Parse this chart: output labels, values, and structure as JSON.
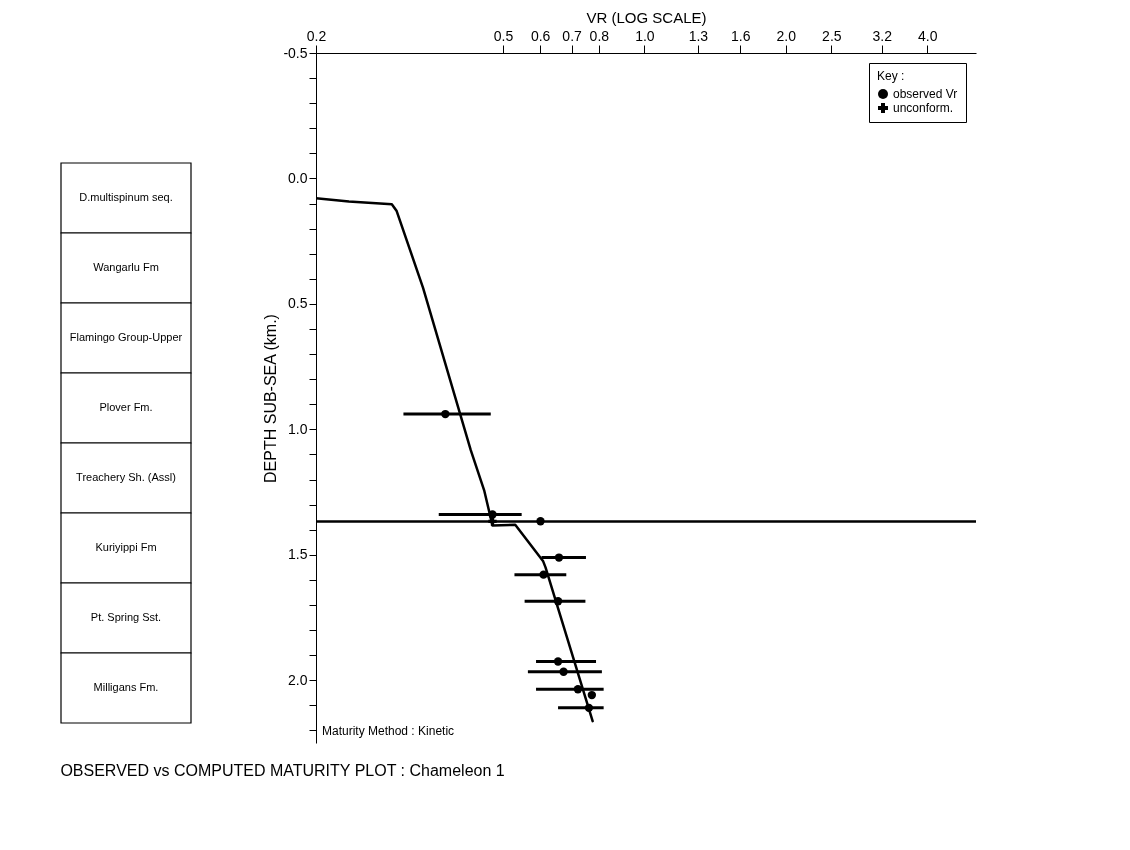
{
  "chart_data": [
    {
      "type": "scatter",
      "title": "OBSERVED vs COMPUTED MATURITY PLOT : Chameleon 1",
      "xlabel": "VR (LOG SCALE)",
      "ylabel": "DEPTH SUB-SEA (km.)",
      "legend_title": "Key :",
      "legend": "top right",
      "log": "x",
      "xlim": [
        0.2,
        5.08
      ],
      "xticks": [
        0.2,
        0.5,
        0.6,
        0.7,
        0.8,
        {
          "value": 1,
          "label": "1.0"
        },
        1.3,
        1.6,
        {
          "value": 2,
          "label": "2.0"
        },
        2.5,
        3.2,
        {
          "value": 4,
          "label": "4.0"
        }
      ],
      "ylim": [
        2.25,
        -0.5
      ],
      "yticks": [
        -0.5,
        {
          "value": -0.4,
          "label": null
        },
        {
          "value": -0.3,
          "label": null
        },
        {
          "value": -0.2,
          "label": null
        },
        {
          "value": -0.1,
          "label": null
        },
        {
          "value": 0,
          "label": "0.0"
        },
        {
          "value": 0.1,
          "label": null
        },
        {
          "value": 0.2,
          "label": null
        },
        {
          "value": 0.3,
          "label": null
        },
        {
          "value": 0.4,
          "label": null
        },
        0.5,
        {
          "value": 0.6,
          "label": null
        },
        {
          "value": 0.7,
          "label": null
        },
        {
          "value": 0.8,
          "label": null
        },
        {
          "value": 0.9,
          "label": null
        },
        {
          "value": 1,
          "label": "1.0"
        },
        {
          "value": 1.1,
          "label": null
        },
        {
          "value": 1.2,
          "label": null
        },
        {
          "value": 1.3,
          "label": null
        },
        {
          "value": 1.4,
          "label": null
        },
        1.5,
        {
          "value": 1.6,
          "label": null
        },
        {
          "value": 1.7,
          "label": null
        },
        {
          "value": 1.8,
          "label": null
        },
        {
          "value": 1.9,
          "label": null
        },
        {
          "value": 2,
          "label": "2.0"
        },
        {
          "value": 2.1,
          "label": null
        },
        {
          "value": 2.2,
          "label": null
        }
      ],
      "ref_lines": [
        {
          "axis": "y",
          "value": 1.367,
          "color": "#000000"
        }
      ],
      "annotations": [
        "Maturity Method : Kinetic"
      ],
      "series": [
        {
          "type": "line",
          "color": "#000000",
          "marker": "none",
          "line_style": "solid",
          "x": [
            0.2,
            0.235,
            0.29,
            0.297,
            0.338,
            0.427,
            0.456,
            0.475,
            0.531,
            0.609,
            0.616,
            0.776
          ],
          "values": [
            0.079,
            0.092,
            0.103,
            0.13,
            0.436,
            1.083,
            1.243,
            1.383,
            1.38,
            1.526,
            1.55,
            2.163
          ]
        },
        {
          "name": "observed Vr",
          "type": "scatter",
          "marker": "circle",
          "color": "#000000",
          "x": [
            0.377,
            0.475,
            0.601,
            0.658,
            0.61,
            0.655,
            0.655,
            0.673,
            0.722,
            0.773,
            0.762
          ],
          "values": [
            0.939,
            1.339,
            1.366,
            1.511,
            1.579,
            1.685,
            1.925,
            1.966,
            2.036,
            2.059,
            2.11
          ],
          "xerrors": [
            [
              0.307,
              0.471
            ],
            [
              0.365,
              0.548
            ],
            null,
            [
              0.604,
              0.751
            ],
            [
              0.529,
              0.682
            ],
            [
              0.556,
              0.749
            ],
            [
              0.588,
              0.789
            ],
            [
              0.565,
              0.812
            ],
            [
              0.588,
              0.819
            ],
            null,
            [
              0.655,
              0.819
            ]
          ]
        },
        {
          "name": "unconform.",
          "type": "scatter",
          "marker": "cross",
          "color": "#000000",
          "x": [
            0.475
          ],
          "values": [
            1.367
          ]
        }
      ]
    },
    {
      "type": "other",
      "annotations": [
        "D.multispinum seq.",
        "Wangarlu Fm",
        "Flamingo Group-Upper",
        "Plover Fm.",
        "Treachery Sh. (Assl)",
        "Kuriyippi Fm",
        "Pt. Spring Sst.",
        "Milligans Fm."
      ]
    }
  ]
}
